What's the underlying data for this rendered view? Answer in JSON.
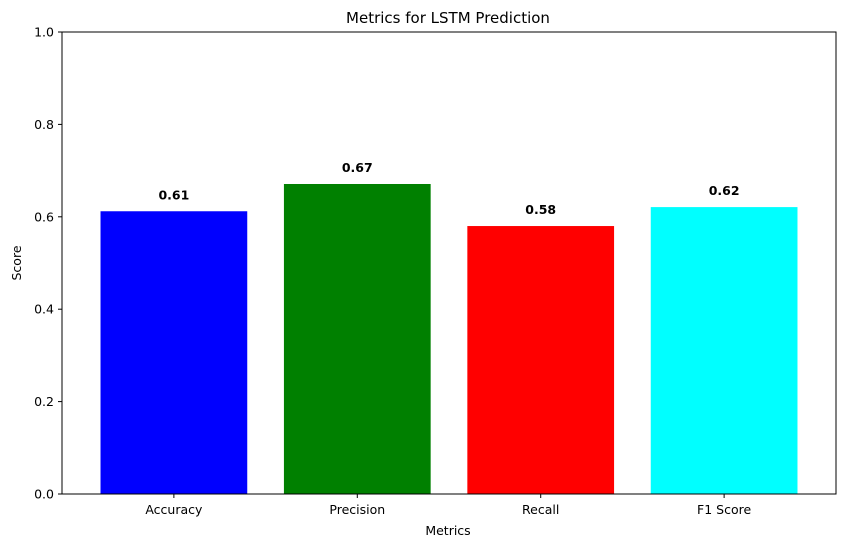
{
  "chart_data": {
    "type": "bar",
    "title": "Metrics for LSTM Prediction",
    "xlabel": "Metrics",
    "ylabel": "Score",
    "categories": [
      "Accuracy",
      "Precision",
      "Recall",
      "F1 Score"
    ],
    "values": [
      0.612,
      0.671,
      0.58,
      0.621
    ],
    "value_labels": [
      "0.61",
      "0.67",
      "0.58",
      "0.62"
    ],
    "colors": [
      "#0000ff",
      "#008000",
      "#ff0000",
      "#00ffff"
    ],
    "ylim": [
      0,
      1
    ],
    "yticks": [
      0.0,
      0.2,
      0.4,
      0.6,
      0.8,
      1.0
    ],
    "ytick_labels": [
      "0.0",
      "0.2",
      "0.4",
      "0.6",
      "0.8",
      "1.0"
    ],
    "grid": false,
    "legend": "none"
  }
}
